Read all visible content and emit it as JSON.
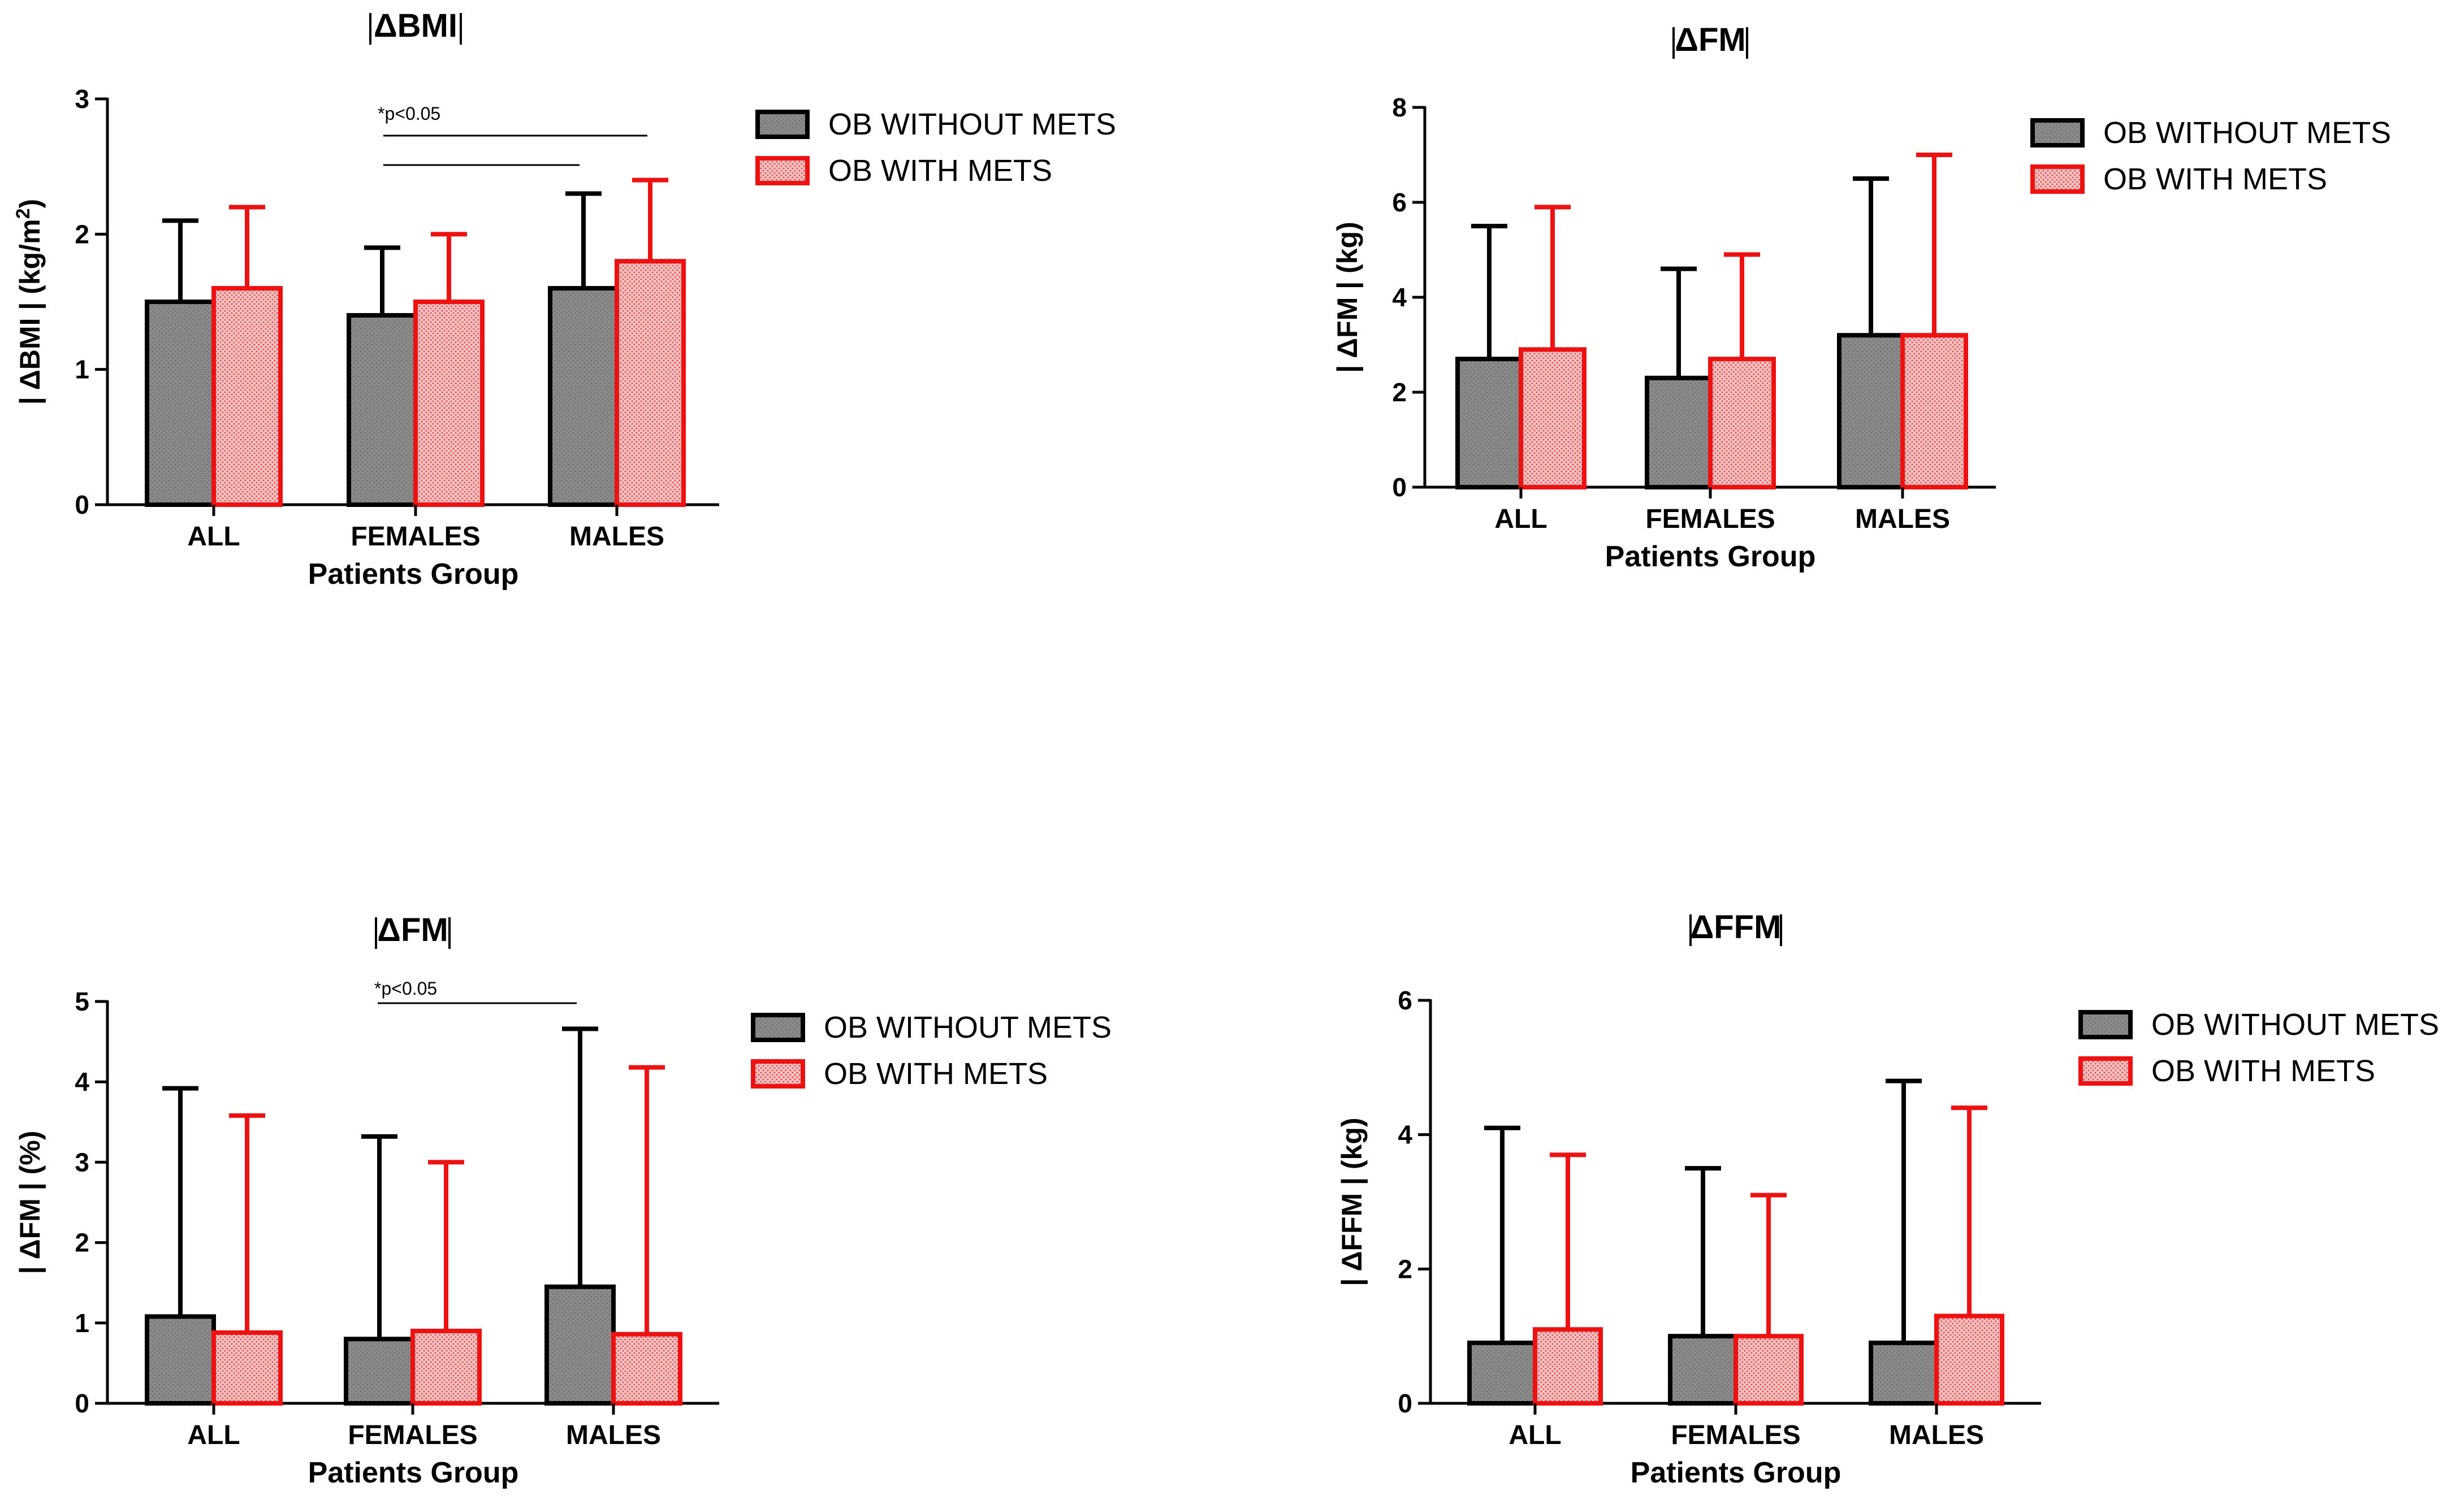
{
  "figure": {
    "legend_labels": [
      "OB WITHOUT METS",
      "OB WITH METS"
    ],
    "colors": {
      "without": "#000000",
      "without_fill": "#808080",
      "with": "#ee1111",
      "with_fill": "#f2b8b8"
    }
  },
  "chart_data": [
    {
      "type": "bar",
      "title": "ΔBMI",
      "ylabel_main": "ΔBMI",
      "ylabel_unit": "(kg/m",
      "ylabel_sup": "2",
      "ylabel_close": ")",
      "xlabel": "Patients Group",
      "categories": [
        "ALL",
        "FEMALES",
        "MALES"
      ],
      "ylim": [
        0,
        3
      ],
      "yticks": [
        "0",
        "1",
        "2",
        "3"
      ],
      "series": [
        {
          "name": "OB WITHOUT METS",
          "values": [
            1.5,
            1.4,
            1.6
          ],
          "errors": [
            2.1,
            1.9,
            2.3
          ]
        },
        {
          "name": "OB WITH METS",
          "values": [
            1.6,
            1.5,
            1.8
          ],
          "errors": [
            2.2,
            2.0,
            2.4
          ]
        }
      ],
      "annotation": "*p<0.05"
    },
    {
      "type": "bar",
      "title": "ΔFM",
      "ylabel_main": "ΔFM",
      "ylabel_unit": "(kg)",
      "xlabel": "Patients Group",
      "categories": [
        "ALL",
        "FEMALES",
        "MALES"
      ],
      "ylim": [
        0,
        8
      ],
      "yticks": [
        "0",
        "2",
        "4",
        "6",
        "8"
      ],
      "series": [
        {
          "name": "OB WITHOUT METS",
          "values": [
            2.7,
            2.3,
            3.2
          ],
          "errors": [
            5.5,
            4.6,
            6.5
          ]
        },
        {
          "name": "OB WITH METS",
          "values": [
            2.9,
            2.7,
            3.2
          ],
          "errors": [
            5.9,
            4.9,
            7.0
          ]
        }
      ]
    },
    {
      "type": "bar",
      "title": "ΔFM",
      "ylabel_main": "ΔFM",
      "ylabel_unit": "(%)",
      "xlabel": "Patients Group",
      "categories": [
        "ALL",
        "FEMALES",
        "MALES"
      ],
      "ylim": [
        0,
        5
      ],
      "yticks": [
        "0",
        "1",
        "2",
        "3",
        "4",
        "5"
      ],
      "series": [
        {
          "name": "OB WITHOUT METS",
          "values": [
            1.08,
            0.8,
            1.45
          ],
          "errors": [
            3.92,
            3.32,
            4.66
          ]
        },
        {
          "name": "OB WITH METS",
          "values": [
            0.88,
            0.9,
            0.86
          ],
          "errors": [
            3.58,
            3.0,
            4.18
          ]
        }
      ],
      "annotation": "*p<0.05"
    },
    {
      "type": "bar",
      "title": "ΔFFM",
      "ylabel_main": "ΔFFM",
      "ylabel_unit": "(kg)",
      "xlabel": "Patients Group",
      "categories": [
        "ALL",
        "FEMALES",
        "MALES"
      ],
      "ylim": [
        0,
        6
      ],
      "yticks": [
        "0",
        "2",
        "4",
        "6"
      ],
      "series": [
        {
          "name": "OB WITHOUT METS",
          "values": [
            0.9,
            1.0,
            0.9
          ],
          "errors": [
            4.1,
            3.5,
            4.8
          ]
        },
        {
          "name": "OB WITH METS",
          "values": [
            1.1,
            1.0,
            1.3
          ],
          "errors": [
            3.7,
            3.1,
            4.4
          ]
        }
      ]
    }
  ]
}
